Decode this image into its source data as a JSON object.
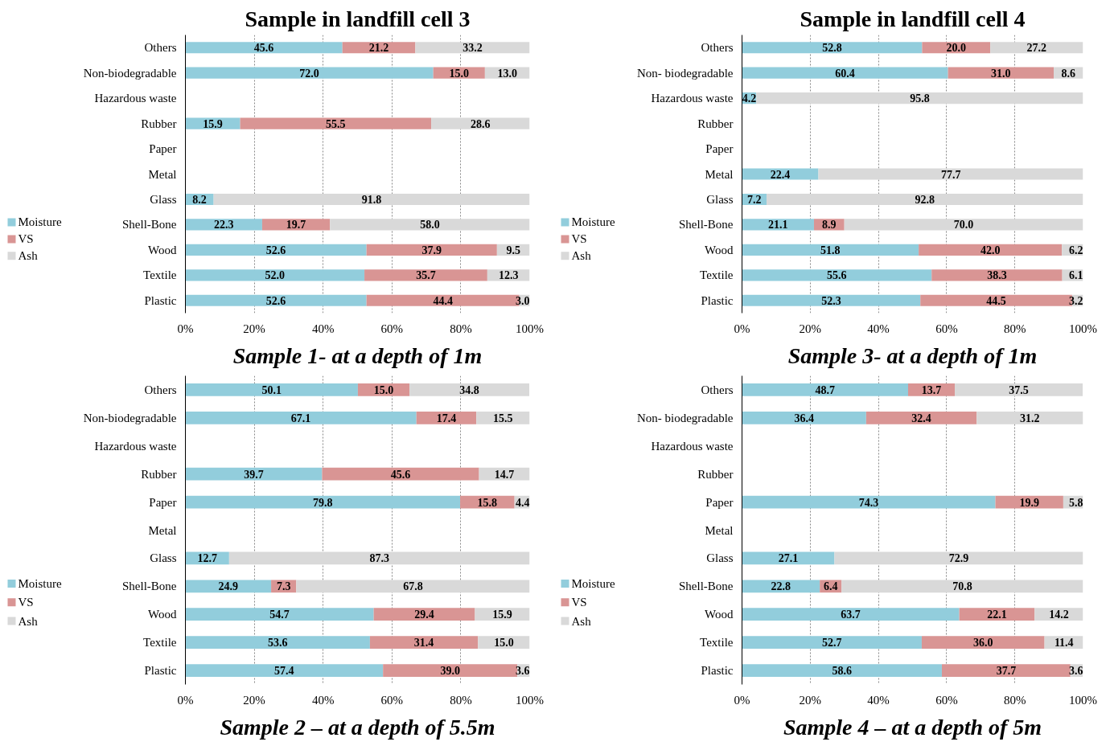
{
  "chart_data": [
    {
      "type": "bar",
      "orientation": "horizontal",
      "stacked": true,
      "title": "Sample in landfill cell 3",
      "subtitle": "Sample 1- at a depth of 1m",
      "categories": [
        "Others",
        "Non-biodegradable",
        "Hazardous waste",
        "Rubber",
        "Paper",
        "Metal",
        "Glass",
        "Shell-Bone",
        "Wood",
        "Textile",
        "Plastic"
      ],
      "series": [
        {
          "name": "Moisture",
          "color": "#92cddc",
          "values": [
            45.6,
            72.0,
            null,
            15.9,
            null,
            null,
            8.2,
            22.3,
            52.6,
            52.0,
            52.6
          ],
          "value_labels": [
            "45.6",
            "72.0",
            null,
            "15.9",
            null,
            null,
            "8.2",
            "22.3",
            "52.6",
            "52.0",
            "52.6"
          ]
        },
        {
          "name": "VS",
          "color": "#d99594",
          "values": [
            21.2,
            15.0,
            null,
            55.5,
            null,
            null,
            null,
            19.7,
            37.9,
            35.7,
            44.4
          ],
          "value_labels": [
            "21.2",
            "15.0",
            null,
            "55.5",
            null,
            null,
            null,
            "19.7",
            "37.9",
            "35.7",
            "44.4"
          ]
        },
        {
          "name": "Ash",
          "color": "#d9d9d9",
          "values": [
            33.2,
            13.0,
            null,
            28.6,
            null,
            null,
            91.8,
            58.0,
            9.5,
            12.3,
            3.0
          ],
          "value_labels": [
            "33.2",
            "13.0",
            null,
            "28.6",
            null,
            null,
            "91.8",
            "58.0",
            "9.5",
            "12.3",
            "3.0"
          ]
        }
      ],
      "xlim": [
        0,
        100
      ],
      "xticks": [
        {
          "value": 0,
          "label": "0%"
        },
        {
          "value": 20,
          "label": "20%"
        },
        {
          "value": 40,
          "label": "40%"
        },
        {
          "value": 60,
          "label": "60%"
        },
        {
          "value": 80,
          "label": "80%"
        },
        {
          "value": 100,
          "label": "100%"
        }
      ],
      "grid": "x",
      "legend": "bottom left",
      "data_labels": true
    },
    {
      "type": "bar",
      "orientation": "horizontal",
      "stacked": true,
      "title": "Sample in landfill cell 4",
      "subtitle": "Sample 3- at a depth of 1m",
      "categories": [
        "Others",
        "Non- biodegradable",
        "Hazardous waste",
        "Rubber",
        "Paper",
        "Metal",
        "Glass",
        "Shell-Bone",
        "Wood",
        "Textile",
        "Plastic"
      ],
      "series": [
        {
          "name": "Moisture",
          "color": "#92cddc",
          "values": [
            52.8,
            60.4,
            4.2,
            null,
            null,
            22.4,
            7.2,
            21.1,
            51.8,
            55.6,
            52.3
          ],
          "value_labels": [
            "52.8",
            "60.4",
            "4.2",
            null,
            null,
            "22.4",
            "7.2",
            "21.1",
            "51.8",
            "55.6",
            "52.3"
          ]
        },
        {
          "name": "VS",
          "color": "#d99594",
          "values": [
            20.0,
            31.0,
            null,
            null,
            null,
            null,
            null,
            8.9,
            42.0,
            38.3,
            44.5
          ],
          "value_labels": [
            "20.0",
            "31.0",
            null,
            null,
            null,
            null,
            null,
            "8.9",
            "42.0",
            "38.3",
            "44.5"
          ]
        },
        {
          "name": "Ash",
          "color": "#d9d9d9",
          "values": [
            27.2,
            8.6,
            95.8,
            null,
            null,
            77.7,
            92.8,
            70.0,
            6.2,
            6.1,
            3.2
          ],
          "value_labels": [
            "27.2",
            "8.6",
            "95.8",
            null,
            null,
            "77.7",
            "92.8",
            "70.0",
            "6.2",
            "6.1",
            "3.2"
          ]
        }
      ],
      "xlim": [
        0,
        100
      ],
      "xticks": [
        {
          "value": 0,
          "label": "0%"
        },
        {
          "value": 20,
          "label": "20%"
        },
        {
          "value": 40,
          "label": "40%"
        },
        {
          "value": 60,
          "label": "60%"
        },
        {
          "value": 80,
          "label": "80%"
        },
        {
          "value": 100,
          "label": "100%"
        }
      ],
      "grid": "x",
      "legend": "bottom left",
      "data_labels": true
    },
    {
      "type": "bar",
      "orientation": "horizontal",
      "stacked": true,
      "subtitle": "Sample 2 – at a depth of 5.5m",
      "categories": [
        "Others",
        "Non-biodegradable",
        "Hazardous waste",
        "Rubber",
        "Paper",
        "Metal",
        "Glass",
        "Shell-Bone",
        "Wood",
        "Textile",
        "Plastic"
      ],
      "series": [
        {
          "name": "Moisture",
          "color": "#92cddc",
          "values": [
            50.1,
            67.1,
            null,
            39.7,
            79.8,
            null,
            12.7,
            24.9,
            54.7,
            53.6,
            57.4
          ],
          "value_labels": [
            "50.1",
            "67.1",
            null,
            "39.7",
            "79.8",
            null,
            "12.7",
            "24.9",
            "54.7",
            "53.6",
            "57.4"
          ]
        },
        {
          "name": "VS",
          "color": "#d99594",
          "values": [
            15.0,
            17.4,
            null,
            45.6,
            15.8,
            null,
            null,
            7.3,
            29.4,
            31.4,
            39.0
          ],
          "value_labels": [
            "15.0",
            "17.4",
            null,
            "45.6",
            "15.8",
            null,
            null,
            "7.3",
            "29.4",
            "31.4",
            "39.0"
          ]
        },
        {
          "name": "Ash",
          "color": "#d9d9d9",
          "values": [
            34.8,
            15.5,
            null,
            14.7,
            4.4,
            null,
            87.3,
            67.8,
            15.9,
            15.0,
            3.6
          ],
          "value_labels": [
            "34.8",
            "15.5",
            null,
            "14.7",
            "4.4",
            null,
            "87.3",
            "67.8",
            "15.9",
            "15.0",
            "3.6"
          ]
        }
      ],
      "xlim": [
        0,
        100
      ],
      "xticks": [
        {
          "value": 0,
          "label": "0%"
        },
        {
          "value": 20,
          "label": "20%"
        },
        {
          "value": 40,
          "label": "40%"
        },
        {
          "value": 60,
          "label": "60%"
        },
        {
          "value": 80,
          "label": "80%"
        },
        {
          "value": 100,
          "label": "100%"
        }
      ],
      "grid": "x",
      "legend": "bottom left",
      "data_labels": true
    },
    {
      "type": "bar",
      "orientation": "horizontal",
      "stacked": true,
      "subtitle": "Sample 4 – at a depth of 5m",
      "categories": [
        "Others",
        "Non- biodegradable",
        "Hazardous waste",
        "Rubber",
        "Paper",
        "Metal",
        "Glass",
        "Shell-Bone",
        "Wood",
        "Textile",
        "Plastic"
      ],
      "series": [
        {
          "name": "Moisture",
          "color": "#92cddc",
          "values": [
            48.7,
            36.4,
            null,
            null,
            74.3,
            null,
            27.1,
            22.8,
            63.7,
            52.7,
            58.6
          ],
          "value_labels": [
            "48.7",
            "36.4",
            null,
            null,
            "74.3",
            null,
            "27.1",
            "22.8",
            "63.7",
            "52.7",
            "58.6"
          ]
        },
        {
          "name": "VS",
          "color": "#d99594",
          "values": [
            13.7,
            32.4,
            null,
            null,
            19.9,
            null,
            null,
            6.4,
            22.1,
            36.0,
            37.7
          ],
          "value_labels": [
            "13.7",
            "32.4",
            null,
            null,
            "19.9",
            null,
            null,
            "6.4",
            "22.1",
            "36.0",
            "37.7"
          ]
        },
        {
          "name": "Ash",
          "color": "#d9d9d9",
          "values": [
            37.5,
            31.2,
            null,
            null,
            5.8,
            null,
            72.9,
            70.8,
            14.2,
            11.4,
            3.6
          ],
          "value_labels": [
            "37.5",
            "31.2",
            null,
            null,
            "5.8",
            null,
            "72.9",
            "70.8",
            "14.2",
            "11.4",
            "3.6"
          ]
        }
      ],
      "xlim": [
        0,
        100
      ],
      "xticks": [
        {
          "value": 0,
          "label": "0%"
        },
        {
          "value": 20,
          "label": "20%"
        },
        {
          "value": 40,
          "label": "40%"
        },
        {
          "value": 60,
          "label": "60%"
        },
        {
          "value": 80,
          "label": "80%"
        },
        {
          "value": 100,
          "label": "100%"
        }
      ],
      "grid": "x",
      "legend": "bottom left",
      "data_labels": true
    }
  ]
}
